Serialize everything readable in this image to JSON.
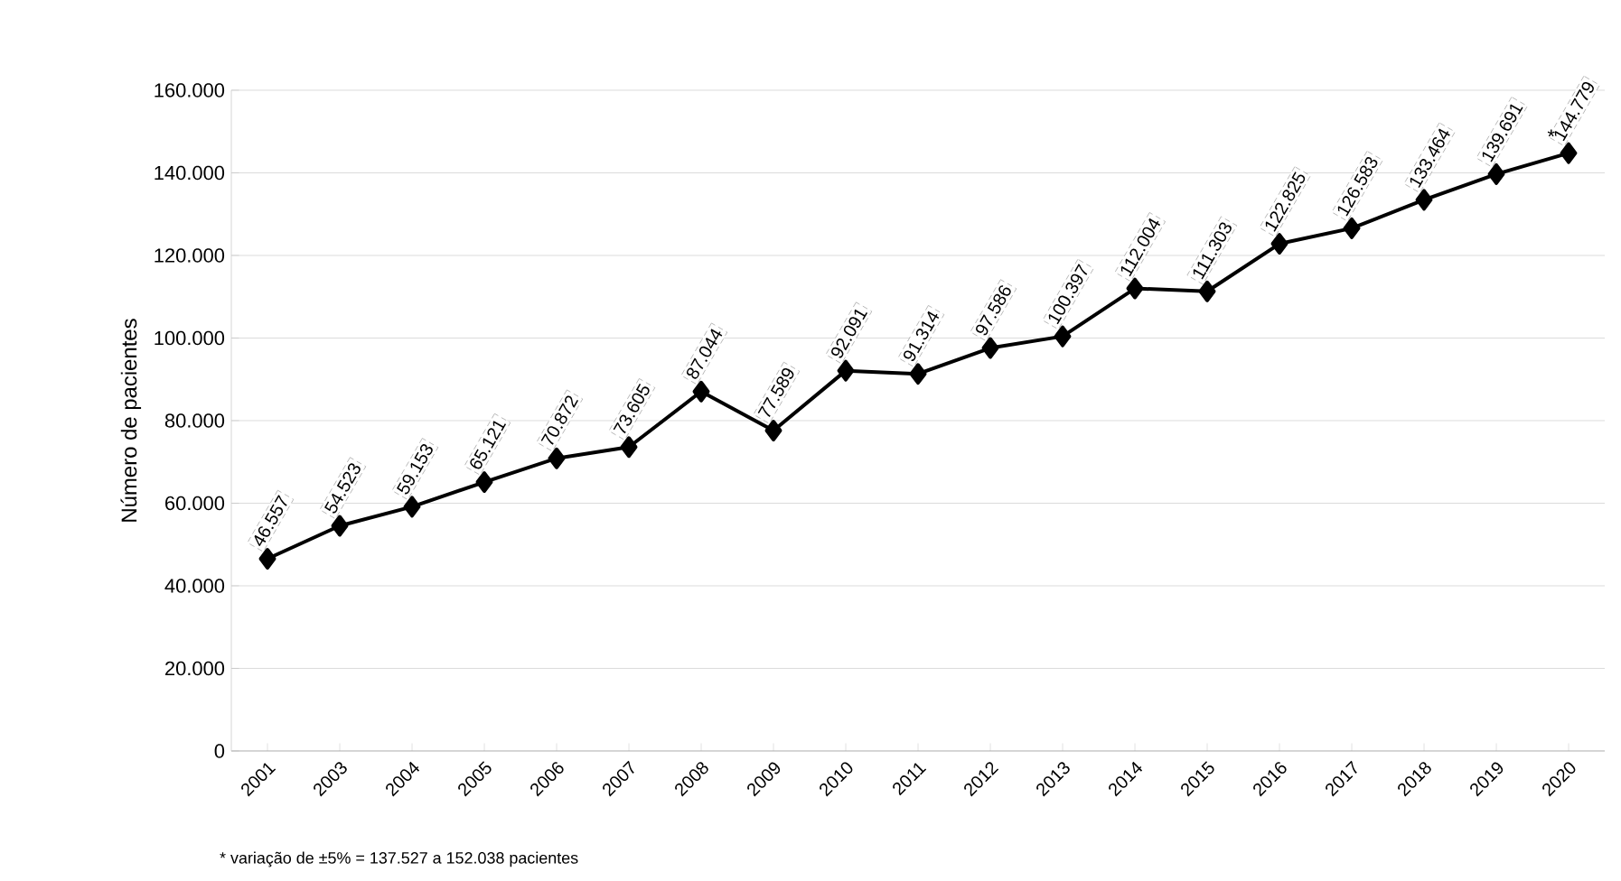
{
  "chart_data": {
    "type": "line",
    "ylabel": "Número de pacientes",
    "categories": [
      "2001",
      "2003",
      "2004",
      "2005",
      "2006",
      "2007",
      "2008",
      "2009",
      "2010",
      "2011",
      "2012",
      "2013",
      "2014",
      "2015",
      "2016",
      "2017",
      "2018",
      "2019",
      "2020"
    ],
    "values": [
      46557,
      54523,
      59153,
      65121,
      70872,
      73605,
      87044,
      77589,
      92091,
      91314,
      97586,
      100397,
      112004,
      111303,
      122825,
      126583,
      133464,
      139691,
      144779
    ],
    "value_labels": [
      "46.557",
      "54.523",
      "59.153",
      "65.121",
      "70.872",
      "73.605",
      "87.044",
      "77.589",
      "92.091",
      "91.314",
      "97.586",
      "100.397",
      "112.004",
      "111.303",
      "122.825",
      "126.583",
      "133.464",
      "139.691",
      "144.779"
    ],
    "color": "#000000",
    "marker": "diamond",
    "line_style": "solid",
    "grid": "y",
    "ylim": [
      0,
      160000
    ],
    "yticks": [
      {
        "value": 0,
        "label": "0"
      },
      {
        "value": 20000,
        "label": "20.000"
      },
      {
        "value": 40000,
        "label": "40.000"
      },
      {
        "value": 60000,
        "label": "60.000"
      },
      {
        "value": 80000,
        "label": "80.000"
      },
      {
        "value": 100000,
        "label": "100.000"
      },
      {
        "value": 120000,
        "label": "120.000"
      },
      {
        "value": 140000,
        "label": "140.000"
      },
      {
        "value": 160000,
        "label": "160.000"
      }
    ],
    "annotations": [
      {
        "text": "*",
        "x": "2020",
        "y": 144779
      },
      "* variação de ±5% = 137.527 a 152.038 pacientes"
    ]
  }
}
